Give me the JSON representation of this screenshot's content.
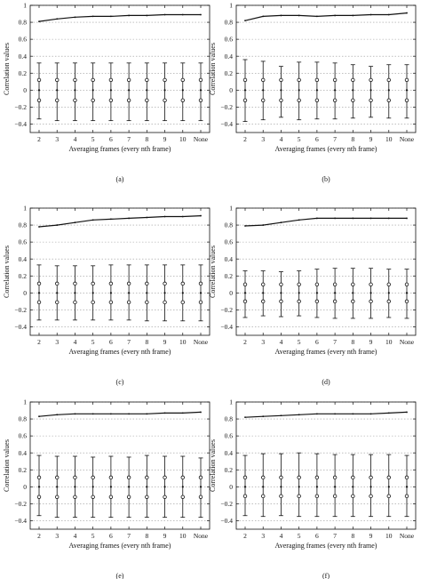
{
  "chart_data": [
    {
      "panel": "(a)",
      "type": "errorbar+line",
      "xlabel": "Averaging frames (every nth frame)",
      "ylabel": "Correlation values",
      "categories": [
        "2",
        "3",
        "4",
        "5",
        "6",
        "7",
        "8",
        "9",
        "10",
        "None"
      ],
      "ylim": [
        -0.5,
        1.0
      ],
      "yticks": [
        -0.4,
        -0.2,
        0,
        0.2,
        0.4,
        0.6,
        0.8,
        1
      ],
      "grid": true,
      "mean_line": [
        0.81,
        0.84,
        0.86,
        0.87,
        0.87,
        0.88,
        0.88,
        0.89,
        0.89,
        0.89
      ],
      "errorbars": [
        {
          "center": 0.0,
          "upper_point": 0.12,
          "lower_point": -0.12,
          "upper": 0.32,
          "lower": -0.34
        },
        {
          "center": 0.0,
          "upper_point": 0.12,
          "lower_point": -0.12,
          "upper": 0.32,
          "lower": -0.36
        },
        {
          "center": 0.0,
          "upper_point": 0.12,
          "lower_point": -0.12,
          "upper": 0.32,
          "lower": -0.36
        },
        {
          "center": 0.0,
          "upper_point": 0.12,
          "lower_point": -0.12,
          "upper": 0.32,
          "lower": -0.36
        },
        {
          "center": 0.0,
          "upper_point": 0.12,
          "lower_point": -0.12,
          "upper": 0.32,
          "lower": -0.36
        },
        {
          "center": 0.0,
          "upper_point": 0.12,
          "lower_point": -0.12,
          "upper": 0.32,
          "lower": -0.36
        },
        {
          "center": 0.0,
          "upper_point": 0.12,
          "lower_point": -0.12,
          "upper": 0.32,
          "lower": -0.36
        },
        {
          "center": 0.0,
          "upper_point": 0.12,
          "lower_point": -0.12,
          "upper": 0.32,
          "lower": -0.36
        },
        {
          "center": 0.0,
          "upper_point": 0.12,
          "lower_point": -0.12,
          "upper": 0.32,
          "lower": -0.36
        },
        {
          "center": 0.0,
          "upper_point": 0.12,
          "lower_point": -0.12,
          "upper": 0.32,
          "lower": -0.36
        }
      ]
    },
    {
      "panel": "(b)",
      "type": "errorbar+line",
      "xlabel": "Averaging frames (every nth frame)",
      "ylabel": "Correlation values",
      "categories": [
        "2",
        "3",
        "4",
        "5",
        "6",
        "7",
        "8",
        "9",
        "10",
        "None"
      ],
      "ylim": [
        -0.5,
        1.0
      ],
      "yticks": [
        -0.4,
        -0.2,
        0,
        0.2,
        0.4,
        0.6,
        0.8,
        1
      ],
      "grid": true,
      "mean_line": [
        0.82,
        0.87,
        0.88,
        0.88,
        0.87,
        0.88,
        0.88,
        0.89,
        0.89,
        0.91
      ],
      "errorbars": [
        {
          "center": 0.0,
          "upper_point": 0.12,
          "lower_point": -0.12,
          "upper": 0.36,
          "lower": -0.37
        },
        {
          "center": 0.0,
          "upper_point": 0.12,
          "lower_point": -0.12,
          "upper": 0.34,
          "lower": -0.35
        },
        {
          "center": 0.0,
          "upper_point": 0.12,
          "lower_point": -0.12,
          "upper": 0.28,
          "lower": -0.32
        },
        {
          "center": 0.0,
          "upper_point": 0.12,
          "lower_point": -0.12,
          "upper": 0.33,
          "lower": -0.35
        },
        {
          "center": 0.0,
          "upper_point": 0.12,
          "lower_point": -0.12,
          "upper": 0.33,
          "lower": -0.34
        },
        {
          "center": 0.0,
          "upper_point": 0.12,
          "lower_point": -0.12,
          "upper": 0.32,
          "lower": -0.34
        },
        {
          "center": 0.0,
          "upper_point": 0.12,
          "lower_point": -0.12,
          "upper": 0.3,
          "lower": -0.33
        },
        {
          "center": 0.0,
          "upper_point": 0.12,
          "lower_point": -0.12,
          "upper": 0.28,
          "lower": -0.32
        },
        {
          "center": 0.0,
          "upper_point": 0.12,
          "lower_point": -0.12,
          "upper": 0.3,
          "lower": -0.33
        },
        {
          "center": 0.0,
          "upper_point": 0.12,
          "lower_point": -0.12,
          "upper": 0.3,
          "lower": -0.33
        }
      ]
    },
    {
      "panel": "(c)",
      "type": "errorbar+line",
      "xlabel": "Averaging frames (every nth frame)",
      "ylabel": "Correlation values",
      "categories": [
        "2",
        "3",
        "4",
        "5",
        "6",
        "7",
        "8",
        "9",
        "10",
        "None"
      ],
      "ylim": [
        -0.5,
        1.0
      ],
      "yticks": [
        -0.4,
        -0.2,
        0,
        0.2,
        0.4,
        0.6,
        0.8,
        1
      ],
      "grid": true,
      "mean_line": [
        0.78,
        0.8,
        0.83,
        0.86,
        0.87,
        0.88,
        0.89,
        0.9,
        0.9,
        0.91
      ],
      "errorbars": [
        {
          "center": 0.0,
          "upper_point": 0.11,
          "lower_point": -0.11,
          "upper": 0.33,
          "lower": -0.32
        },
        {
          "center": 0.0,
          "upper_point": 0.11,
          "lower_point": -0.11,
          "upper": 0.32,
          "lower": -0.32
        },
        {
          "center": 0.0,
          "upper_point": 0.11,
          "lower_point": -0.11,
          "upper": 0.32,
          "lower": -0.32
        },
        {
          "center": 0.0,
          "upper_point": 0.11,
          "lower_point": -0.11,
          "upper": 0.32,
          "lower": -0.32
        },
        {
          "center": 0.0,
          "upper_point": 0.11,
          "lower_point": -0.11,
          "upper": 0.33,
          "lower": -0.32
        },
        {
          "center": 0.0,
          "upper_point": 0.11,
          "lower_point": -0.11,
          "upper": 0.33,
          "lower": -0.32
        },
        {
          "center": 0.0,
          "upper_point": 0.11,
          "lower_point": -0.11,
          "upper": 0.33,
          "lower": -0.33
        },
        {
          "center": 0.0,
          "upper_point": 0.11,
          "lower_point": -0.11,
          "upper": 0.33,
          "lower": -0.33
        },
        {
          "center": 0.0,
          "upper_point": 0.11,
          "lower_point": -0.11,
          "upper": 0.33,
          "lower": -0.33
        },
        {
          "center": 0.0,
          "upper_point": 0.11,
          "lower_point": -0.11,
          "upper": 0.33,
          "lower": -0.33
        }
      ]
    },
    {
      "panel": "(d)",
      "type": "errorbar+line",
      "xlabel": "Averaging frames (every nth frame)",
      "ylabel": "Correlation values",
      "categories": [
        "2",
        "3",
        "4",
        "5",
        "6",
        "7",
        "8",
        "9",
        "10",
        "None"
      ],
      "ylim": [
        -0.5,
        1.0
      ],
      "yticks": [
        -0.4,
        -0.2,
        0,
        0.2,
        0.4,
        0.6,
        0.8,
        1
      ],
      "grid": true,
      "mean_line": [
        0.79,
        0.8,
        0.83,
        0.86,
        0.88,
        0.88,
        0.88,
        0.88,
        0.88,
        0.88
      ],
      "errorbars": [
        {
          "center": 0.0,
          "upper_point": 0.1,
          "lower_point": -0.1,
          "upper": 0.26,
          "lower": -0.29
        },
        {
          "center": 0.0,
          "upper_point": 0.1,
          "lower_point": -0.1,
          "upper": 0.26,
          "lower": -0.27
        },
        {
          "center": 0.0,
          "upper_point": 0.1,
          "lower_point": -0.1,
          "upper": 0.25,
          "lower": -0.28
        },
        {
          "center": 0.0,
          "upper_point": 0.1,
          "lower_point": -0.1,
          "upper": 0.26,
          "lower": -0.27
        },
        {
          "center": 0.0,
          "upper_point": 0.1,
          "lower_point": -0.1,
          "upper": 0.28,
          "lower": -0.29
        },
        {
          "center": 0.0,
          "upper_point": 0.1,
          "lower_point": -0.1,
          "upper": 0.29,
          "lower": -0.3
        },
        {
          "center": 0.0,
          "upper_point": 0.1,
          "lower_point": -0.1,
          "upper": 0.29,
          "lower": -0.3
        },
        {
          "center": 0.0,
          "upper_point": 0.1,
          "lower_point": -0.1,
          "upper": 0.29,
          "lower": -0.3
        },
        {
          "center": 0.0,
          "upper_point": 0.1,
          "lower_point": -0.1,
          "upper": 0.28,
          "lower": -0.29
        },
        {
          "center": 0.0,
          "upper_point": 0.1,
          "lower_point": -0.1,
          "upper": 0.28,
          "lower": -0.3
        }
      ]
    },
    {
      "panel": "(e)",
      "type": "errorbar+line",
      "xlabel": "Averaging frames (every nth frame)",
      "ylabel": "Correlation values",
      "categories": [
        "2",
        "3",
        "4",
        "5",
        "6",
        "7",
        "8",
        "9",
        "10",
        "None"
      ],
      "ylim": [
        -0.5,
        1.0
      ],
      "yticks": [
        -0.4,
        -0.2,
        0,
        0.2,
        0.4,
        0.6,
        0.8,
        1
      ],
      "grid": true,
      "mean_line": [
        0.83,
        0.85,
        0.86,
        0.86,
        0.86,
        0.86,
        0.86,
        0.87,
        0.87,
        0.88
      ],
      "errorbars": [
        {
          "center": 0.0,
          "upper_point": 0.11,
          "lower_point": -0.12,
          "upper": 0.37,
          "lower": -0.34
        },
        {
          "center": 0.0,
          "upper_point": 0.11,
          "lower_point": -0.12,
          "upper": 0.36,
          "lower": -0.36
        },
        {
          "center": 0.0,
          "upper_point": 0.11,
          "lower_point": -0.12,
          "upper": 0.36,
          "lower": -0.36
        },
        {
          "center": 0.0,
          "upper_point": 0.11,
          "lower_point": -0.12,
          "upper": 0.35,
          "lower": -0.36
        },
        {
          "center": 0.0,
          "upper_point": 0.11,
          "lower_point": -0.12,
          "upper": 0.36,
          "lower": -0.36
        },
        {
          "center": 0.0,
          "upper_point": 0.11,
          "lower_point": -0.12,
          "upper": 0.35,
          "lower": -0.36
        },
        {
          "center": 0.0,
          "upper_point": 0.11,
          "lower_point": -0.12,
          "upper": 0.37,
          "lower": -0.36
        },
        {
          "center": 0.0,
          "upper_point": 0.11,
          "lower_point": -0.12,
          "upper": 0.36,
          "lower": -0.36
        },
        {
          "center": 0.0,
          "upper_point": 0.11,
          "lower_point": -0.12,
          "upper": 0.36,
          "lower": -0.36
        },
        {
          "center": 0.0,
          "upper_point": 0.11,
          "lower_point": -0.12,
          "upper": 0.34,
          "lower": -0.36
        }
      ]
    },
    {
      "panel": "(f)",
      "type": "errorbar+line",
      "xlabel": "Averaging frames (every nth frame)",
      "ylabel": "Correlation values",
      "categories": [
        "2",
        "3",
        "4",
        "5",
        "6",
        "7",
        "8",
        "9",
        "10",
        "None"
      ],
      "ylim": [
        -0.5,
        1.0
      ],
      "yticks": [
        -0.4,
        -0.2,
        0,
        0.2,
        0.4,
        0.6,
        0.8,
        1
      ],
      "grid": true,
      "mean_line": [
        0.82,
        0.83,
        0.84,
        0.85,
        0.86,
        0.86,
        0.86,
        0.86,
        0.87,
        0.88
      ],
      "errorbars": [
        {
          "center": 0.0,
          "upper_point": 0.11,
          "lower_point": -0.11,
          "upper": 0.37,
          "lower": -0.34
        },
        {
          "center": 0.0,
          "upper_point": 0.11,
          "lower_point": -0.11,
          "upper": 0.39,
          "lower": -0.35
        },
        {
          "center": 0.0,
          "upper_point": 0.11,
          "lower_point": -0.11,
          "upper": 0.39,
          "lower": -0.34
        },
        {
          "center": 0.0,
          "upper_point": 0.11,
          "lower_point": -0.11,
          "upper": 0.4,
          "lower": -0.35
        },
        {
          "center": 0.0,
          "upper_point": 0.11,
          "lower_point": -0.11,
          "upper": 0.39,
          "lower": -0.35
        },
        {
          "center": 0.0,
          "upper_point": 0.11,
          "lower_point": -0.11,
          "upper": 0.38,
          "lower": -0.35
        },
        {
          "center": 0.0,
          "upper_point": 0.11,
          "lower_point": -0.11,
          "upper": 0.38,
          "lower": -0.35
        },
        {
          "center": 0.0,
          "upper_point": 0.11,
          "lower_point": -0.11,
          "upper": 0.38,
          "lower": -0.35
        },
        {
          "center": 0.0,
          "upper_point": 0.11,
          "lower_point": -0.11,
          "upper": 0.38,
          "lower": -0.35
        },
        {
          "center": 0.0,
          "upper_point": 0.11,
          "lower_point": -0.11,
          "upper": 0.37,
          "lower": -0.35
        }
      ]
    }
  ]
}
